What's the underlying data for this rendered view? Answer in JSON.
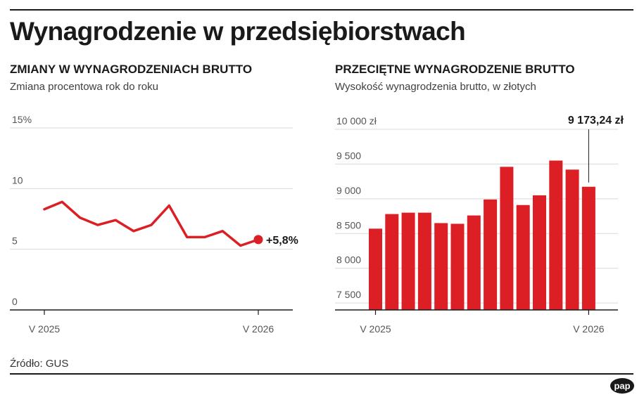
{
  "title": "Wynagrodzenie w przedsiębiorstwach",
  "source": "Źródło: GUS",
  "logo_text": "pap",
  "colors": {
    "accent": "#dc1e25",
    "text": "#1a1a1a",
    "grid": "#d9d9d9"
  },
  "chart_data": [
    {
      "type": "line",
      "title": "ZMIANY W WYNAGRODZENIACH BRUTTO",
      "subtitle": "Zmiana procentowa rok do roku",
      "y_ticks": [
        "15%",
        "10",
        "5",
        "0"
      ],
      "y_tick_values": [
        15,
        10,
        5,
        0
      ],
      "ylim": [
        0,
        15
      ],
      "x_labels": [
        "V 2025",
        "V 2026"
      ],
      "series": [
        {
          "values": [
            8.3,
            8.9,
            7.6,
            7.0,
            7.4,
            6.5,
            7.0,
            8.6,
            6.0,
            6.0,
            6.5,
            5.3,
            5.8
          ]
        }
      ],
      "last_value_label": "+5,8%",
      "grid": true
    },
    {
      "type": "bar",
      "title": "PRZECIĘTNE WYNAGRODZENIE BRUTTO",
      "subtitle": "Wysokość wynagrodzenia brutto, w złotych",
      "y_ticks": [
        "10 000 zł",
        "9 500",
        "9 000",
        "8 500",
        "8 000",
        "7 500"
      ],
      "y_tick_values": [
        10000,
        9500,
        9000,
        8500,
        8000,
        7500
      ],
      "ylim": [
        7400,
        10000
      ],
      "x_labels": [
        "V 2025",
        "V 2026"
      ],
      "series": [
        {
          "values": [
            8570,
            8780,
            8800,
            8800,
            8650,
            8640,
            8760,
            8990,
            9460,
            8910,
            9050,
            9550,
            9420,
            9173.24
          ]
        }
      ],
      "last_value_label": "9 173,24 zł",
      "grid": true
    }
  ]
}
